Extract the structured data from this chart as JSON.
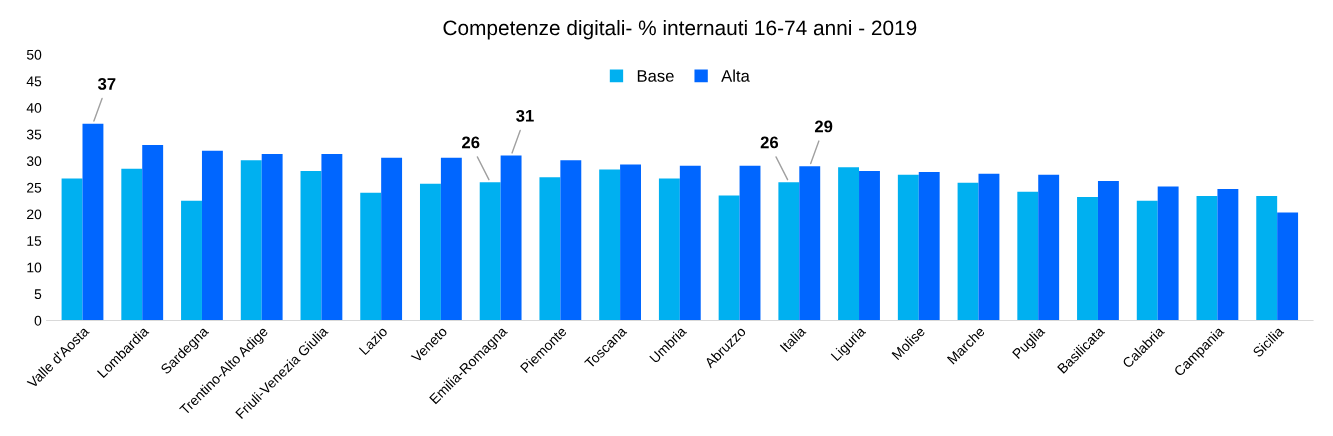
{
  "chart_data": {
    "type": "bar",
    "title": "Competenze digitali- % internauti 16-74 anni - 2019",
    "categories": [
      "Valle d'Aosta",
      "Lombardia",
      "Sardegna",
      "Trentino-Alto Adige",
      "Friuli-Venezia Giulia",
      "Lazio",
      "Veneto",
      "Emilia-Romagna",
      "Piemonte",
      "Toscana",
      "Umbria",
      "Abruzzo",
      "Italia",
      "Liguria",
      "Molise",
      "Marche",
      "Puglia",
      "Basilicata",
      "Calabria",
      "Campania",
      "Sicilia"
    ],
    "series": [
      {
        "name": "Base",
        "color": "#00b0f0",
        "values": [
          26.7,
          28.5,
          22.5,
          30.1,
          28.1,
          24.0,
          25.7,
          26,
          26.9,
          28.4,
          26.7,
          23.5,
          26,
          28.8,
          27.4,
          25.9,
          24.2,
          23.2,
          22.5,
          23.4,
          23.4
        ],
        "value_labels": [
          null,
          null,
          null,
          null,
          null,
          null,
          null,
          "26",
          null,
          null,
          null,
          null,
          "26",
          null,
          null,
          null,
          null,
          null,
          null,
          null,
          null
        ]
      },
      {
        "name": "Alta",
        "color": "#0066ff",
        "values": [
          37,
          33.0,
          31.9,
          31.3,
          31.3,
          30.6,
          30.6,
          31,
          30.1,
          29.3,
          29.1,
          29.1,
          29,
          28.1,
          27.9,
          27.6,
          27.4,
          26.2,
          25.2,
          24.7,
          20.3
        ],
        "value_labels": [
          "37",
          null,
          null,
          null,
          null,
          null,
          null,
          "31",
          null,
          null,
          null,
          null,
          "29",
          null,
          null,
          null,
          null,
          null,
          null,
          null,
          null
        ]
      }
    ],
    "ylim": [
      0,
      50
    ],
    "yticks": [
      0,
      5,
      10,
      15,
      20,
      25,
      30,
      35,
      40,
      45,
      50
    ],
    "grid": false,
    "legend": "top"
  }
}
